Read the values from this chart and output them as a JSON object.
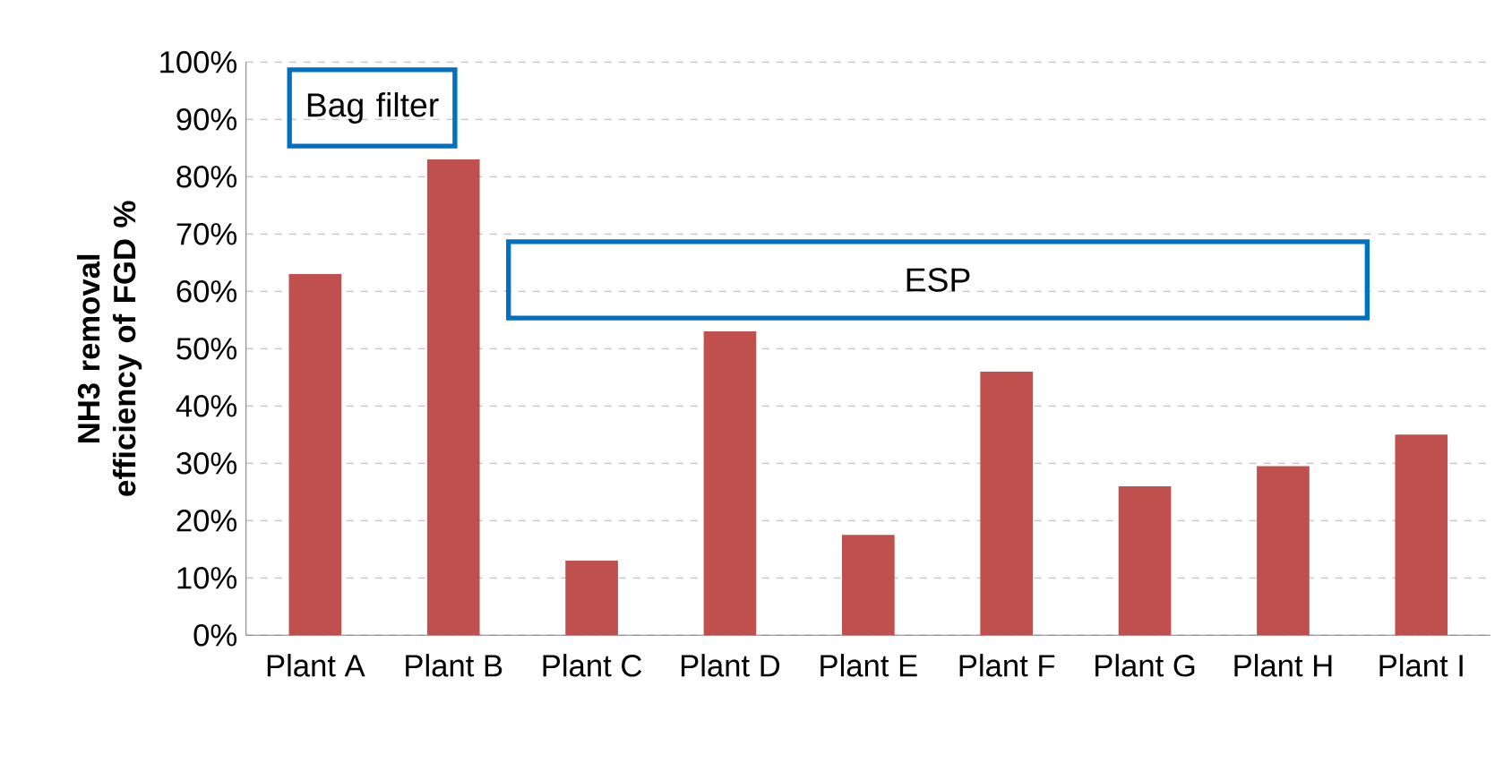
{
  "chart_data": {
    "type": "bar",
    "ylabel": "NH3  removal efficiency of FGD %",
    "categories": [
      "Plant A",
      "Plant B",
      "Plant C",
      "Plant D",
      "Plant E",
      "Plant F",
      "Plant G",
      "Plant H",
      "Plant I"
    ],
    "values": [
      63,
      83,
      13,
      53,
      17.5,
      46,
      26,
      29.5,
      35
    ],
    "color": "#c0504d",
    "ylim": [
      0,
      100
    ],
    "yticks": [
      {
        "value": 0,
        "label": "0%"
      },
      {
        "value": 10,
        "label": "10%"
      },
      {
        "value": 20,
        "label": "20%"
      },
      {
        "value": 30,
        "label": "30%"
      },
      {
        "value": 40,
        "label": "40%"
      },
      {
        "value": 50,
        "label": "50%"
      },
      {
        "value": 60,
        "label": "60%"
      },
      {
        "value": 70,
        "label": "70%"
      },
      {
        "value": 80,
        "label": "80%"
      },
      {
        "value": 90,
        "label": "90%"
      },
      {
        "value": 100,
        "label": "100%"
      }
    ],
    "grid": "y",
    "annotations": [
      "Bag filter",
      "ESP"
    ]
  }
}
